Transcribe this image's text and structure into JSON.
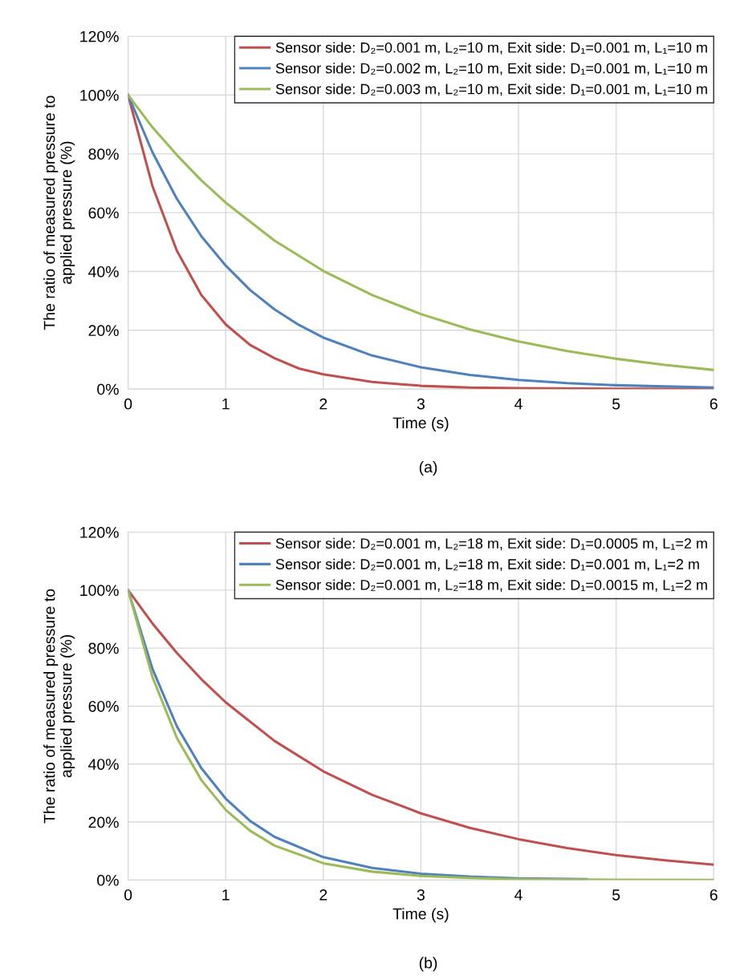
{
  "chart_data": [
    {
      "type": "line",
      "xlabel": "Time (s)",
      "ylabel": "The ratio of measured pressure to\napplied pressure (%)",
      "annotations": [
        "(a)"
      ],
      "xlim": [
        0,
        6
      ],
      "xticks": [
        0,
        1,
        2,
        3,
        4,
        5,
        6
      ],
      "ylim": [
        0,
        120
      ],
      "yticks": [
        {
          "value": 0,
          "label": "0%"
        },
        {
          "value": 20,
          "label": "20%"
        },
        {
          "value": 40,
          "label": "40%"
        },
        {
          "value": 60,
          "label": "60%"
        },
        {
          "value": 80,
          "label": "80%"
        },
        {
          "value": 100,
          "label": "100%"
        },
        {
          "value": 120,
          "label": "120%"
        }
      ],
      "grid": true,
      "legend": "top right",
      "series": [
        {
          "name": "Sensor side: D₂=0.001 m, L₂=10 m, Exit side: D₁=0.001 m, L₁=10 m",
          "color": "#c0504d",
          "x": [
            0,
            0.25,
            0.5,
            0.75,
            1,
            1.25,
            1.5,
            1.75,
            2,
            2.5,
            3,
            3.5,
            4,
            5,
            6
          ],
          "values": [
            100,
            69,
            47,
            32,
            22,
            15,
            10.5,
            7,
            5,
            2.4,
            1.1,
            0.5,
            0.3,
            0.1,
            0
          ]
        },
        {
          "name": "Sensor side: D₂=0.002 m, L₂=10 m, Exit side: D₁=0.001 m, L₁=10 m",
          "color": "#4f81bd",
          "x": [
            0,
            0.25,
            0.5,
            0.75,
            1,
            1.25,
            1.5,
            1.75,
            2,
            2.5,
            3,
            3.5,
            4,
            4.5,
            5,
            6
          ],
          "values": [
            100,
            80.5,
            64.7,
            52,
            42,
            33.7,
            27.1,
            21.8,
            17.5,
            11.4,
            7.4,
            4.8,
            3.1,
            2,
            1.3,
            0.5
          ]
        },
        {
          "name": "Sensor side: D₂=0.003 m, L₂=10 m, Exit side: D₁=0.001 m, L₁=10 m",
          "color": "#9bbb59",
          "x": [
            0,
            0.25,
            0.5,
            0.75,
            1,
            1.5,
            2,
            2.5,
            3,
            3.5,
            4,
            4.5,
            5,
            5.5,
            6
          ],
          "values": [
            100,
            89,
            79.6,
            71,
            63.4,
            50.5,
            40.2,
            32,
            25.5,
            20.3,
            16.2,
            12.9,
            10.3,
            8.2,
            6.5
          ]
        }
      ]
    },
    {
      "type": "line",
      "xlabel": "Time (s)",
      "ylabel": "The ratio of measured pressure to\napplied pressure (%)",
      "annotations": [
        "(b)"
      ],
      "xlim": [
        0,
        6
      ],
      "xticks": [
        0,
        1,
        2,
        3,
        4,
        5,
        6
      ],
      "ylim": [
        0,
        120
      ],
      "yticks": [
        {
          "value": 0,
          "label": "0%"
        },
        {
          "value": 20,
          "label": "20%"
        },
        {
          "value": 40,
          "label": "40%"
        },
        {
          "value": 60,
          "label": "60%"
        },
        {
          "value": 80,
          "label": "80%"
        },
        {
          "value": 100,
          "label": "100%"
        },
        {
          "value": 120,
          "label": "120%"
        }
      ],
      "grid": true,
      "legend": "top right",
      "series": [
        {
          "name": "Sensor side: D₂=0.001 m, L₂=18 m, Exit side: D₁=0.0005 m, L₁=2 m",
          "color": "#c0504d",
          "x": [
            0,
            0.25,
            0.5,
            0.75,
            1,
            1.5,
            2,
            2.5,
            3,
            3.5,
            4,
            4.5,
            5,
            5.5,
            6
          ],
          "values": [
            100,
            88.5,
            78.3,
            69.3,
            61.3,
            48,
            37.5,
            29.4,
            23,
            18,
            14.1,
            11,
            8.6,
            6.8,
            5.3
          ]
        },
        {
          "name": "Sensor side: D₂=0.001 m, L₂=18 m, Exit side: D₁=0.001 m, L₁=2 m",
          "color": "#4f81bd",
          "x": [
            0,
            0.25,
            0.5,
            0.75,
            1,
            1.25,
            1.5,
            2,
            2.5,
            3,
            3.5,
            4,
            4.7
          ],
          "values": [
            100,
            72.8,
            53,
            38.6,
            28.1,
            20.4,
            14.9,
            7.9,
            4.2,
            2.2,
            1.2,
            0.6,
            0.3
          ]
        },
        {
          "name": "Sensor side: D₂=0.001 m, L₂=18 m, Exit side: D₁=0.0015 m, L₁=2 m",
          "color": "#9bbb59",
          "x": [
            0,
            0.25,
            0.5,
            0.75,
            1,
            1.25,
            1.5,
            2,
            2.5,
            3,
            3.5,
            4,
            5,
            6
          ],
          "values": [
            100,
            70,
            49,
            34.5,
            24.2,
            17,
            11.9,
            5.8,
            2.9,
            1.4,
            0.7,
            0.3,
            0.1,
            0
          ]
        }
      ]
    }
  ]
}
